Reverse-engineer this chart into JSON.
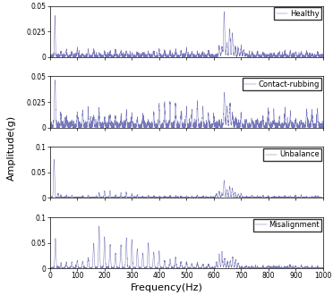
{
  "title": "",
  "xlabel": "Frequency(Hz)",
  "ylabel": "Amplitude(g)",
  "subplots": [
    {
      "label": "Healthy",
      "ylim": [
        0,
        0.05
      ],
      "yticks": [
        0,
        0.025,
        0.05
      ]
    },
    {
      "label": "Contact-rubbing",
      "ylim": [
        0,
        0.05
      ],
      "yticks": [
        0,
        0.025,
        0.05
      ]
    },
    {
      "label": "Unbalance",
      "ylim": [
        0,
        0.1
      ],
      "yticks": [
        0,
        0.05,
        0.1
      ]
    },
    {
      "label": "Misalignment",
      "ylim": [
        0,
        0.1
      ],
      "yticks": [
        0,
        0.05,
        0.1
      ]
    }
  ],
  "xlim": [
    0,
    1000
  ],
  "xticks": [
    0,
    100,
    200,
    300,
    400,
    500,
    600,
    700,
    800,
    900,
    1000
  ],
  "line_color": "#7777bb",
  "background_color": "#ffffff",
  "seed": 42
}
